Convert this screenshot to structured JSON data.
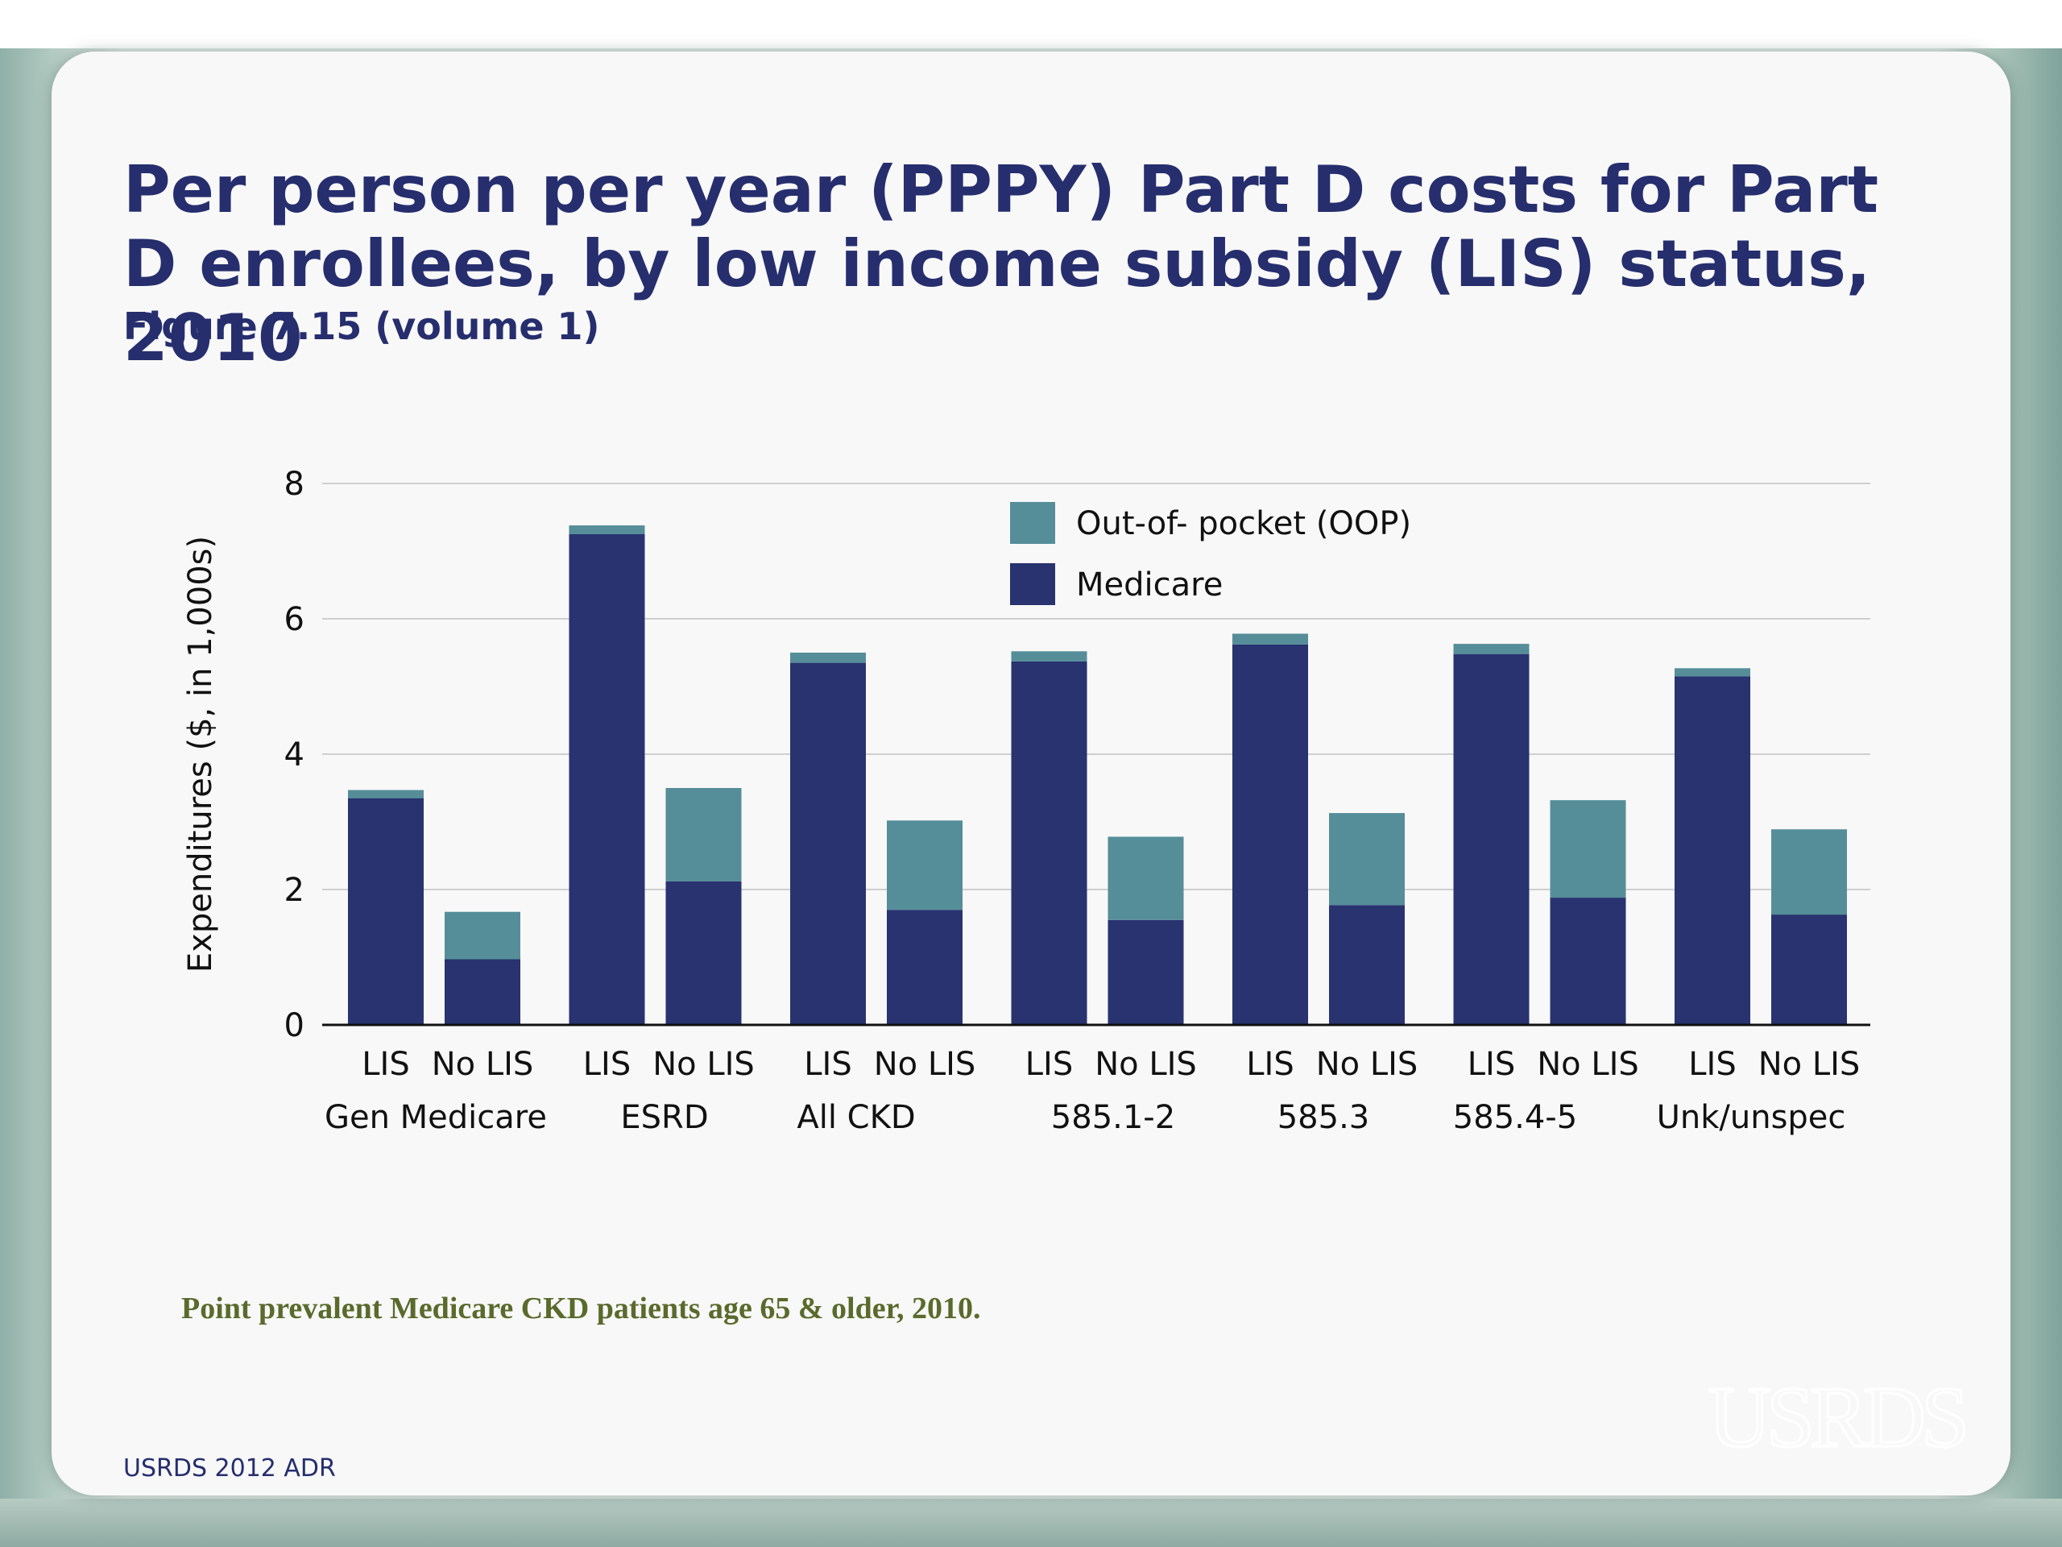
{
  "title": "Per person per year (PPPY) Part D costs for Part D enrollees, by low income subsidy (LIS) status, 2010",
  "subtitle": "Figure 7.15 (volume 1)",
  "footnote": "Point prevalent Medicare CKD patients age 65 & older, 2010.",
  "source": "USRDS 2012 ADR",
  "logo_text": "USRDS",
  "colors": {
    "title": "#262e6e",
    "medicare": "#28336f",
    "oop": "#558e99",
    "footnote": "#5a6a2c"
  },
  "chart_data": {
    "type": "bar",
    "stacked": true,
    "ylabel": "Expenditures ($, in 1,000s)",
    "ylim": [
      0,
      8
    ],
    "yticks": [
      0,
      2,
      4,
      6,
      8
    ],
    "grid": true,
    "legend_position": "top-center",
    "categories": [
      "LIS",
      "No LIS",
      "LIS",
      "No LIS",
      "LIS",
      "No LIS",
      "LIS",
      "No LIS",
      "LIS",
      "No LIS",
      "LIS",
      "No LIS",
      "LIS",
      "No LIS"
    ],
    "groups": [
      "Gen Medicare",
      "ESRD",
      "All CKD",
      "585.1-2",
      "585.3",
      "585.4-5",
      "Unk/unspec"
    ],
    "series": [
      {
        "name": "Medicare",
        "values": [
          3.35,
          0.97,
          7.25,
          2.12,
          5.35,
          1.7,
          5.37,
          1.55,
          5.62,
          1.77,
          5.48,
          1.88,
          5.15,
          1.63
        ]
      },
      {
        "name": "Out-of- pocket (OOP)",
        "values": [
          0.12,
          0.7,
          0.13,
          1.38,
          0.15,
          1.32,
          0.15,
          1.23,
          0.16,
          1.36,
          0.15,
          1.44,
          0.12,
          1.26
        ]
      }
    ],
    "legend": [
      "Out-of- pocket (OOP)",
      "Medicare"
    ]
  }
}
